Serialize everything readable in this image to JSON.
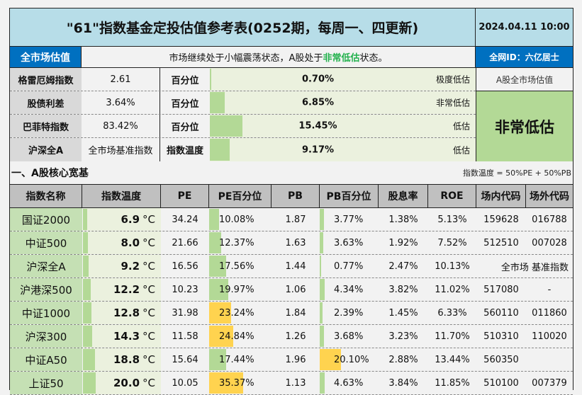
{
  "header": {
    "title": "\"61\"指数基金定投估值参考表(0252期，每周一、四更新)",
    "datetime": "2024.04.11 10:00"
  },
  "market": {
    "label": "全市场估值",
    "desc_prefix": "市场继续处于小幅震荡状态，A股处于",
    "desc_highlight": "非常低估",
    "desc_suffix": "状态。",
    "author": "全网ID：六亿居士",
    "highlight_color": "#22b14c"
  },
  "indicators": [
    {
      "name": "格雷厄姆指数",
      "value": "2.61",
      "plabel": "百分位",
      "pct": "0.70%",
      "pct_num": 0.7,
      "state": "极度低估"
    },
    {
      "name": "股债利差",
      "value": "3.64%",
      "plabel": "百分位",
      "pct": "6.85%",
      "pct_num": 6.85,
      "state": "非常低估"
    },
    {
      "name": "巴菲特指数",
      "value": "83.42%",
      "plabel": "百分位",
      "pct": "15.45%",
      "pct_num": 15.45,
      "state": "低估"
    },
    {
      "name": "沪深全A",
      "value": "全市场基准指数",
      "plabel": "指数温度",
      "pct": "9.17%",
      "pct_num": 9.17,
      "state": "低估"
    }
  ],
  "overall": {
    "label": "A股全市场估值",
    "value": "非常低估"
  },
  "section": {
    "title": "一、A股核心宽基",
    "note": "指数温度 = 50%PE +  50%PB"
  },
  "table": {
    "columns": [
      "指数名称",
      "指数温度",
      "PE",
      "PE百分位",
      "PB",
      "PB百分位",
      "股息率",
      "ROE",
      "场内代码",
      "场外代码"
    ],
    "temp_unit": "°C",
    "rows": [
      {
        "name": "国证2000",
        "temp": "6.9",
        "temp_num": 6.9,
        "pe": "34.24",
        "pe_pct": "10.08%",
        "pe_pct_num": 10.08,
        "pe_color": "green",
        "pb": "1.87",
        "pb_pct": "3.77%",
        "pb_pct_num": 3.77,
        "pb_color": "green",
        "dividend": "1.38%",
        "roe": "5.13%",
        "code_in": "159628",
        "code_out": "016788"
      },
      {
        "name": "中证500",
        "temp": "8.0",
        "temp_num": 8.0,
        "pe": "21.66",
        "pe_pct": "12.37%",
        "pe_pct_num": 12.37,
        "pe_color": "green",
        "pb": "1.63",
        "pb_pct": "3.63%",
        "pb_pct_num": 3.63,
        "pb_color": "green",
        "dividend": "1.92%",
        "roe": "7.52%",
        "code_in": "512510",
        "code_out": "007028"
      },
      {
        "name": "沪深全A",
        "temp": "9.2",
        "temp_num": 9.2,
        "pe": "16.56",
        "pe_pct": "17.56%",
        "pe_pct_num": 17.56,
        "pe_color": "green",
        "pb": "1.44",
        "pb_pct": "0.77%",
        "pb_pct_num": 0.77,
        "pb_color": "green",
        "dividend": "2.47%",
        "roe": "10.13%",
        "code_merged": "全市场 基准指数"
      },
      {
        "name": "沪港深500",
        "temp": "12.2",
        "temp_num": 12.2,
        "pe": "10.23",
        "pe_pct": "19.97%",
        "pe_pct_num": 19.97,
        "pe_color": "green",
        "pb": "1.06",
        "pb_pct": "4.34%",
        "pb_pct_num": 4.34,
        "pb_color": "green",
        "dividend": "3.82%",
        "roe": "11.02%",
        "code_in": "517080",
        "code_out": "-"
      },
      {
        "name": "中证1000",
        "temp": "12.8",
        "temp_num": 12.8,
        "pe": "31.98",
        "pe_pct": "23.24%",
        "pe_pct_num": 23.24,
        "pe_color": "yellow",
        "pb": "1.84",
        "pb_pct": "2.39%",
        "pb_pct_num": 2.39,
        "pb_color": "green",
        "dividend": "1.45%",
        "roe": "6.33%",
        "code_in": "560110",
        "code_out": "011860"
      },
      {
        "name": "沪深300",
        "temp": "14.3",
        "temp_num": 14.3,
        "pe": "11.58",
        "pe_pct": "24.84%",
        "pe_pct_num": 24.84,
        "pe_color": "yellow",
        "pb": "1.26",
        "pb_pct": "3.68%",
        "pb_pct_num": 3.68,
        "pb_color": "green",
        "dividend": "3.23%",
        "roe": "11.70%",
        "code_in": "510310",
        "code_out": "110020"
      },
      {
        "name": "中证A50",
        "temp": "18.8",
        "temp_num": 18.8,
        "pe": "15.64",
        "pe_pct": "17.44%",
        "pe_pct_num": 17.44,
        "pe_color": "green",
        "pb": "1.96",
        "pb_pct": "20.10%",
        "pb_pct_num": 20.1,
        "pb_color": "yellow",
        "dividend": "2.88%",
        "roe": "13.44%",
        "code_in": "560350",
        "code_out": ""
      },
      {
        "name": "上证50",
        "temp": "20.0",
        "temp_num": 20.0,
        "pe": "10.05",
        "pe_pct": "35.37%",
        "pe_pct_num": 35.37,
        "pe_color": "yellow",
        "pb": "1.13",
        "pb_pct": "4.63%",
        "pb_pct_num": 4.63,
        "pb_color": "green",
        "dividend": "3.84%",
        "roe": "11.85%",
        "code_in": "510100",
        "code_out": "007379"
      }
    ]
  },
  "colors": {
    "title_bg": "#b7dde8",
    "brand_blue": "#0070c0",
    "bar_green": "#b3d996",
    "bar_yellow": "#ffd34f",
    "name_bg": "#c5e0b4",
    "header_gray": "#c0c0c0"
  }
}
